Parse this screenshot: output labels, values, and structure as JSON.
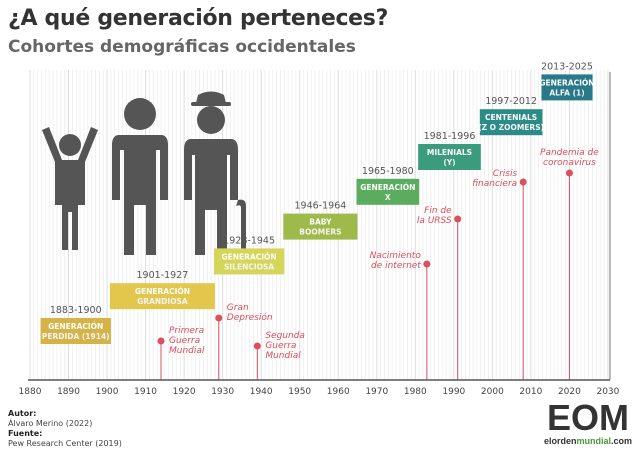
{
  "title": "¿A qué generación perteneces?",
  "subtitle": "Cohortes demográficas occidentales",
  "axis_ticks": [
    "1880",
    "1890",
    "1900",
    "1910",
    "1920",
    "1930",
    "1940",
    "1950",
    "1960",
    "1970",
    "1980",
    "1990",
    "2000",
    "2010",
    "2020",
    "2030"
  ],
  "generations": [
    {
      "years": "1883-1900",
      "line1": "GENERACIÓN",
      "line2": "PERDIDA (1914)",
      "start": 1883,
      "end": 1900,
      "color": "#d6b347"
    },
    {
      "years": "1901-1927",
      "line1": "GENERACIÓN",
      "line2": "GRANDIOSA",
      "start": 1901,
      "end": 1927,
      "color": "#e3c64c"
    },
    {
      "years": "1928-1945",
      "line1": "GENERACIÓN",
      "line2": "SILENCIOSA",
      "start": 1928,
      "end": 1945,
      "color": "#d5d55a"
    },
    {
      "years": "1946-1964",
      "line1": "BABY",
      "line2": "BOOMERS",
      "start": 1946,
      "end": 1964,
      "color": "#9dba4a"
    },
    {
      "years": "1965-1980",
      "line1": "GENERACIÓN",
      "line2": "X",
      "start": 1965,
      "end": 1980,
      "color": "#5aad5e"
    },
    {
      "years": "1981-1996",
      "line1": "MILENIALS",
      "line2": "(Y)",
      "start": 1981,
      "end": 1996,
      "color": "#3a9c7c"
    },
    {
      "years": "1997-2012",
      "line1": "CENTENIALS",
      "line2": "(Z O ZOOMERS)",
      "start": 1997,
      "end": 2012,
      "color": "#2b8b87"
    },
    {
      "years": "2013-2025",
      "line1": "GENERACIÓN",
      "line2": "ALFA (1)",
      "start": 2013,
      "end": 2025,
      "color": "#2a798b"
    }
  ],
  "events": [
    {
      "year": 1914,
      "lines": [
        "Primera",
        "Guerra",
        "Mundial"
      ],
      "side": "right"
    },
    {
      "year": 1929,
      "lines": [
        "Gran",
        "Depresión"
      ],
      "side": "right"
    },
    {
      "year": 1939,
      "lines": [
        "Segunda",
        "Guerra",
        "Mundial"
      ],
      "side": "right"
    },
    {
      "year": 1983,
      "lines": [
        "Nacimiento",
        "de internet"
      ],
      "side": "left"
    },
    {
      "year": 1991,
      "lines": [
        "Fin de",
        "la URSS"
      ],
      "side": "left"
    },
    {
      "year": 2008,
      "lines": [
        "Crisis",
        "financiera"
      ],
      "side": "left"
    },
    {
      "year": 2020,
      "lines": [
        "Pandemia de",
        "coronavirus"
      ],
      "side": "above"
    }
  ],
  "colors": {
    "event": "#d9505e",
    "icons": "#555555"
  },
  "footer": {
    "author_label": "Autor:",
    "author": "Álvaro Merino (2022)",
    "source_label": "Fuente:",
    "source": "Pew Research Center (2019)"
  },
  "logo": {
    "text": "EOM",
    "url_a": "elorden",
    "url_b": "mundial",
    "url_c": ".com"
  }
}
